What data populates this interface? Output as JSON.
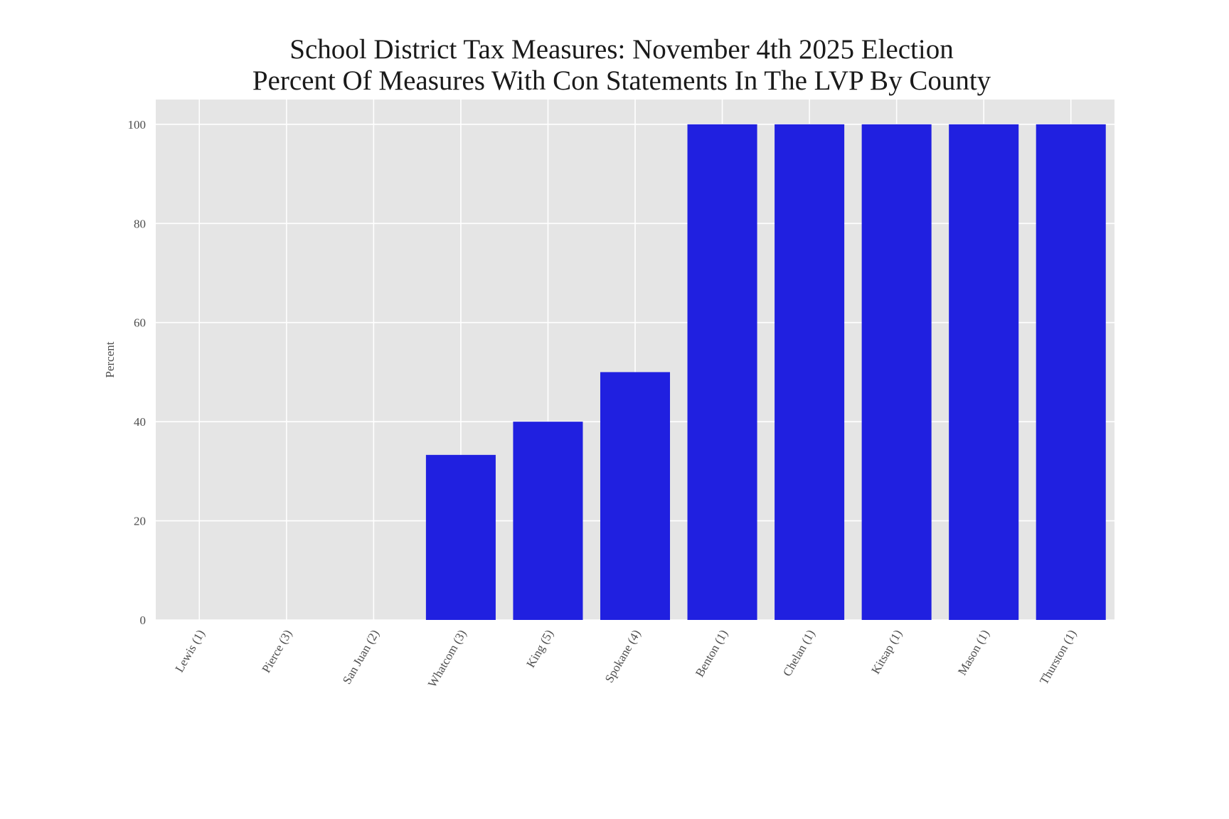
{
  "chart_data": {
    "type": "bar",
    "title": "School District Tax Measures: November 4th 2025 Election",
    "subtitle": "Percent Of Measures With Con Statements In The LVP By County",
    "xlabel": "",
    "ylabel": "Percent",
    "categories": [
      "Lewis (1)",
      "Pierce (3)",
      "San Juan (2)",
      "Whatcom (3)",
      "King (5)",
      "Spokane (4)",
      "Benton (1)",
      "Chelan (1)",
      "Kitsap (1)",
      "Mason (1)",
      "Thurston (1)"
    ],
    "values": [
      0,
      0,
      0,
      33.3,
      40,
      50,
      100,
      100,
      100,
      100,
      100
    ],
    "ylim": [
      0,
      105
    ],
    "yticks": [
      "0",
      "20",
      "40",
      "60",
      "80",
      "100"
    ],
    "grid": true,
    "bar_color": "#2020e0",
    "plot_background": "#e5e5e5",
    "grid_color": "#ffffff",
    "legend": "none"
  }
}
